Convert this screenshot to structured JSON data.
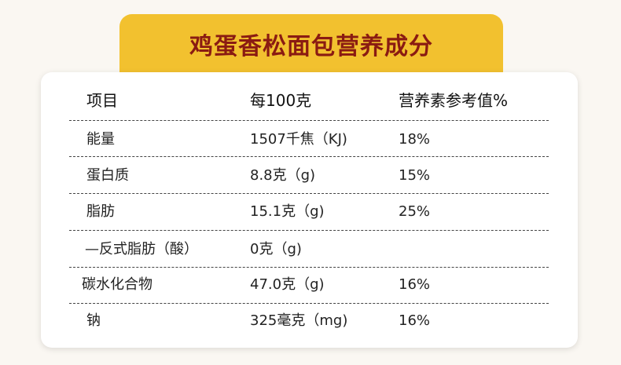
{
  "header": {
    "title": "鸡蛋香松面包营养成分"
  },
  "table": {
    "columns": [
      "项目",
      "每100克",
      "营养素参考值%"
    ],
    "rows": [
      [
        "能量",
        "1507千焦（KJ)",
        "18%"
      ],
      [
        "蛋白质",
        "8.8克（g)",
        "15%"
      ],
      [
        "脂肪",
        "15.1克（g)",
        "25%"
      ],
      [
        "—反式脂肪（酸）",
        "0克（g)",
        ""
      ],
      [
        "碳水化合物",
        "47.0克（g)",
        "16%"
      ],
      [
        "钠",
        "325毫克（mg)",
        "16%"
      ]
    ]
  }
}
